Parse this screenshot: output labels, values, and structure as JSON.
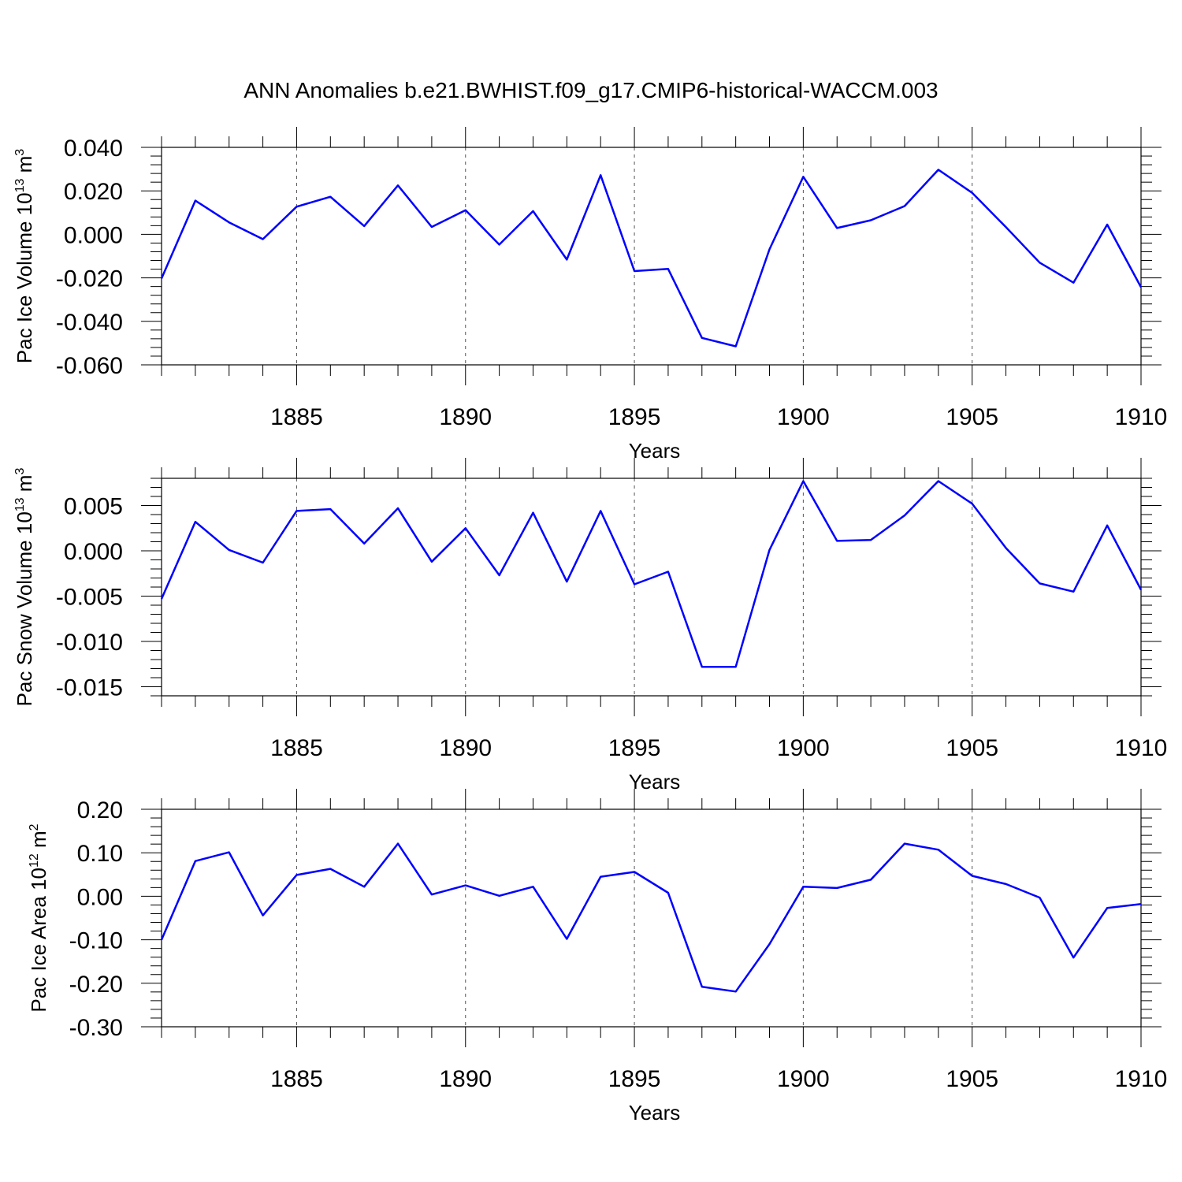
{
  "title": "ANN Anomalies b.e21.BWHIST.f09_g17.CMIP6-historical-WACCM.003",
  "chart_data": [
    {
      "type": "line",
      "ylabel": "Pac Ice Volume 10",
      "ylabel_exp": "13",
      "ylabel_unit": " m",
      "ylabel_unit_exp": "3",
      "xlabel": "Years",
      "xlim": [
        1881,
        1910
      ],
      "ylim": [
        -0.06,
        0.04
      ],
      "yticks": [
        "0.040",
        "0.020",
        "0.000",
        "-0.020",
        "-0.040",
        "-0.060"
      ],
      "ytick_values": [
        0.04,
        0.02,
        0.0,
        -0.02,
        -0.04,
        -0.06
      ],
      "xticks": [
        1885,
        1890,
        1895,
        1900,
        1905,
        1910
      ],
      "x": [
        1881,
        1882,
        1883,
        1884,
        1885,
        1886,
        1887,
        1888,
        1889,
        1890,
        1891,
        1892,
        1893,
        1894,
        1895,
        1896,
        1897,
        1898,
        1899,
        1900,
        1901,
        1902,
        1903,
        1904,
        1905,
        1906,
        1907,
        1908,
        1909,
        1910
      ],
      "values": [
        -0.0203,
        0.0155,
        0.0055,
        -0.0022,
        0.0127,
        0.0173,
        0.0038,
        0.0225,
        0.0034,
        0.0111,
        -0.0047,
        0.0107,
        -0.0116,
        0.0272,
        -0.0169,
        -0.0159,
        -0.0476,
        -0.0515,
        -0.0069,
        0.0265,
        0.0029,
        0.0065,
        0.013,
        0.0297,
        0.0191,
        0.0033,
        -0.013,
        -0.0222,
        0.0045,
        -0.0243
      ],
      "color": "#0000ff",
      "grid": "dashed vertical at major x ticks"
    },
    {
      "type": "line",
      "ylabel": "Pac Snow Volume 10",
      "ylabel_exp": "13",
      "ylabel_unit": " m",
      "ylabel_unit_exp": "3",
      "xlabel": "Years",
      "xlim": [
        1881,
        1910
      ],
      "ylim": [
        -0.016,
        0.008
      ],
      "yticks": [
        "0.005",
        "0.000",
        "-0.005",
        "-0.010",
        "-0.015"
      ],
      "ytick_values": [
        0.005,
        0.0,
        -0.005,
        -0.01,
        -0.015
      ],
      "xticks": [
        1885,
        1890,
        1895,
        1900,
        1905,
        1910
      ],
      "x": [
        1881,
        1882,
        1883,
        1884,
        1885,
        1886,
        1887,
        1888,
        1889,
        1890,
        1891,
        1892,
        1893,
        1894,
        1895,
        1896,
        1897,
        1898,
        1899,
        1900,
        1901,
        1902,
        1903,
        1904,
        1905,
        1906,
        1907,
        1908,
        1909,
        1910
      ],
      "values": [
        -0.0053,
        0.0032,
        0.0001,
        -0.0013,
        0.0044,
        0.0046,
        0.0008,
        0.0047,
        -0.0012,
        0.0025,
        -0.0027,
        0.0042,
        -0.0034,
        0.0044,
        -0.0037,
        -0.0023,
        -0.0128,
        -0.0128,
        0.0001,
        0.0077,
        0.0011,
        0.0012,
        0.0039,
        0.0077,
        0.0052,
        0.0003,
        -0.0036,
        -0.0045,
        0.0028,
        -0.0043
      ],
      "color": "#0000ff",
      "grid": "dashed vertical at major x ticks"
    },
    {
      "type": "line",
      "ylabel": "Pac Ice Area 10",
      "ylabel_exp": "12",
      "ylabel_unit": " m",
      "ylabel_unit_exp": "2",
      "xlabel": "Years",
      "xlim": [
        1881,
        1910
      ],
      "ylim": [
        -0.3,
        0.2
      ],
      "yticks": [
        "0.20",
        "0.10",
        "0.00",
        "-0.10",
        "-0.20",
        "-0.30"
      ],
      "ytick_values": [
        0.2,
        0.1,
        0.0,
        -0.1,
        -0.2,
        -0.3
      ],
      "xticks": [
        1885,
        1890,
        1895,
        1900,
        1905,
        1910
      ],
      "x": [
        1881,
        1882,
        1883,
        1884,
        1885,
        1886,
        1887,
        1888,
        1889,
        1890,
        1891,
        1892,
        1893,
        1894,
        1895,
        1896,
        1897,
        1898,
        1899,
        1900,
        1901,
        1902,
        1903,
        1904,
        1905,
        1906,
        1907,
        1908,
        1909,
        1910
      ],
      "values": [
        -0.1,
        0.081,
        0.101,
        -0.044,
        0.049,
        0.063,
        0.022,
        0.121,
        0.004,
        0.025,
        0.001,
        0.022,
        -0.098,
        0.045,
        0.056,
        0.008,
        -0.208,
        -0.219,
        -0.11,
        0.022,
        0.019,
        0.038,
        0.121,
        0.107,
        0.047,
        0.028,
        -0.003,
        -0.141,
        -0.027,
        -0.018
      ],
      "color": "#0000ff",
      "grid": "dashed vertical at major x ticks"
    }
  ]
}
